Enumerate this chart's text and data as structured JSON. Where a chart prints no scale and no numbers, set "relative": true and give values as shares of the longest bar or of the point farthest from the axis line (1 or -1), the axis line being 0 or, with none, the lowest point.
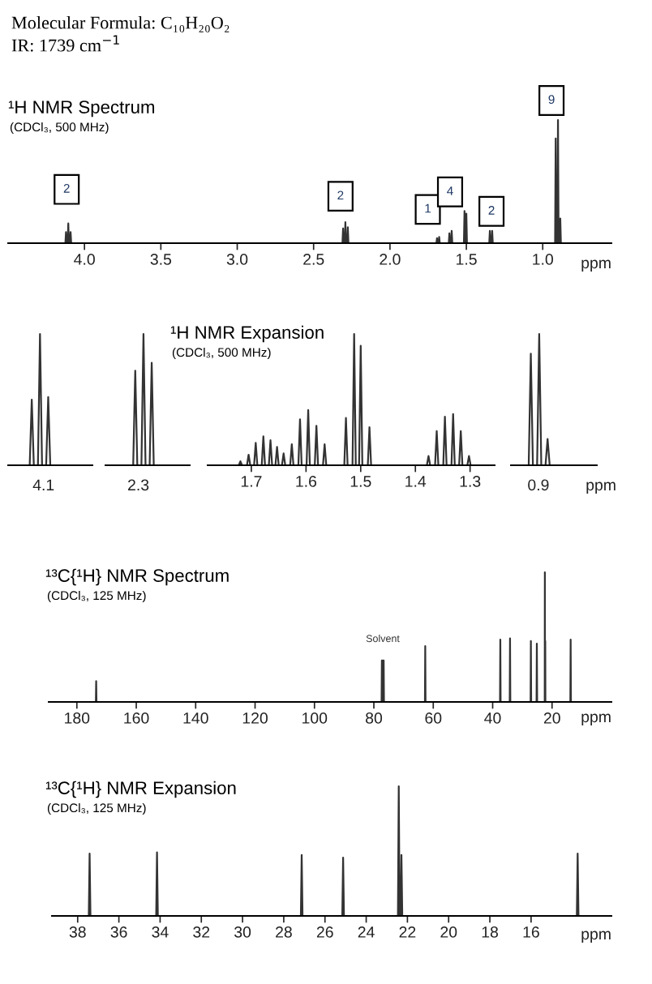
{
  "chart_data": [
    {
      "type": "line",
      "relative": true,
      "title": "¹H NMR Spectrum",
      "subtitle": "(CDCl₃, 500 MHz)",
      "xlabel": "ppm",
      "xlim": [
        4.5,
        0.55
      ],
      "xticks": [
        {
          "value": 4.0,
          "label": "4.0"
        },
        3.5,
        {
          "value": 3.0,
          "label": "3.0"
        },
        2.5,
        {
          "value": 2.0,
          "label": "2.0"
        },
        1.5,
        {
          "value": 1.0,
          "label": "1.0"
        }
      ],
      "annotations": [
        "Molecular Formula: C₁₀H₂₀O₂",
        "IR: 1739 cm$^{−1}$",
        {
          "text": "2",
          "x": 4.106,
          "y": 0.16
        },
        {
          "text": "2",
          "x": 2.292,
          "y": 0.17
        },
        {
          "text": "1",
          "x": 1.678,
          "y": 0.05
        },
        {
          "text": "4",
          "x": 1.596,
          "y": 0.1
        },
        {
          "text": "2",
          "x": 1.346,
          "y": 0.1
        },
        {
          "text": "9",
          "x": 0.9,
          "y": 1
        }
      ],
      "series": [
        {
          "color": "#333333",
          "x": [
            4.5,
            4.125,
            4.121,
            4.117,
            4.11,
            4.106,
            4.102,
            4.095,
            4.091,
            4.087,
            2.311,
            2.307,
            2.303,
            2.296,
            2.292,
            2.288,
            2.28,
            2.276,
            2.272,
            1.696,
            1.692,
            1.688,
            1.682,
            1.678,
            1.674,
            1.615,
            1.611,
            1.607,
            1.6,
            1.596,
            1.592,
            1.516,
            1.512,
            1.508,
            1.504,
            1.5,
            1.496,
            1.35,
            1.346,
            1.342,
            1.335,
            1.331,
            1.327,
            0.919,
            0.915,
            0.911,
            0.904,
            0.9,
            0.896,
            0.889,
            0.885,
            0.881,
            0.55
          ],
          "values": [
            0,
            0,
            0.09,
            0,
            0,
            0.16,
            0,
            0,
            0.09,
            0,
            0,
            0.12,
            0,
            0,
            0.17,
            0,
            0,
            0.13,
            0,
            0,
            0.04,
            0,
            0,
            0.05,
            0,
            0,
            0.08,
            0,
            0,
            0.1,
            0,
            0,
            0.26,
            0,
            0,
            0.24,
            0,
            0,
            0.1,
            0,
            0,
            0.1,
            0,
            0,
            0.85,
            0,
            0,
            1,
            0,
            0,
            0.2,
            0,
            0
          ]
        }
      ]
    },
    {
      "type": "line",
      "relative": true,
      "annotations": [
        "4.1"
      ],
      "categories": [
        null,
        null,
        null,
        null,
        null,
        null,
        null,
        null,
        null,
        null,
        null,
        null,
        null,
        null,
        null,
        null,
        null,
        null,
        null,
        null,
        null,
        null,
        null,
        null,
        null,
        null,
        null,
        null,
        null,
        null,
        null,
        null,
        null,
        null,
        null,
        null,
        null,
        null,
        null,
        null,
        null
      ],
      "series": [
        {
          "color": "#333333",
          "values": [
            0,
            0,
            0,
            0,
            0,
            0,
            0,
            0,
            0,
            0,
            0,
            0.5,
            0,
            0,
            0,
            1,
            0,
            0,
            0,
            0.52,
            0,
            0,
            0,
            0,
            0,
            0,
            0,
            0,
            0,
            0,
            0,
            0,
            0,
            0,
            0,
            0,
            0,
            0,
            0,
            0,
            0
          ]
        }
      ]
    },
    {
      "type": "line",
      "relative": true,
      "annotations": [
        "2.3"
      ],
      "categories": [
        null,
        null,
        null,
        null,
        null,
        null,
        null,
        null,
        null,
        null,
        null,
        null,
        null,
        null,
        null,
        null,
        null,
        null,
        null,
        null,
        null,
        null,
        null,
        null,
        null,
        null,
        null,
        null,
        null,
        null,
        null,
        null,
        null,
        null,
        null,
        null,
        null,
        null,
        null,
        null,
        null
      ],
      "series": [
        {
          "color": "#333333",
          "values": [
            0,
            0,
            0,
            0,
            0,
            0,
            0,
            0,
            0,
            0,
            0,
            0,
            0,
            0,
            0.72,
            0,
            0,
            0,
            1,
            0,
            0,
            0,
            0.78,
            0,
            0,
            0,
            0,
            0,
            0,
            0,
            0,
            0,
            0,
            0,
            0,
            0,
            0,
            0,
            0,
            0,
            0
          ]
        }
      ]
    },
    {
      "type": "line",
      "relative": true,
      "title": "¹H NMR Expansion",
      "subtitle": "(CDCl₃, 500 MHz)",
      "xlim": [
        1.78,
        1.255
      ],
      "xticks": [
        1.7,
        1.6,
        1.5,
        1.4,
        1.3
      ],
      "series": [
        {
          "color": "#333333",
          "x": [
            1.78,
            1.723,
            1.72,
            1.717,
            1.708,
            1.705,
            1.702,
            1.695,
            1.692,
            1.689,
            1.681,
            1.678,
            1.675,
            1.668,
            1.665,
            1.662,
            1.656,
            1.653,
            1.65,
            1.644,
            1.641,
            1.638,
            1.629,
            1.626,
            1.623,
            1.614,
            1.611,
            1.608,
            1.599,
            1.596,
            1.593,
            1.584,
            1.581,
            1.578,
            1.569,
            1.566,
            1.563,
            1.53,
            1.527,
            1.524,
            1.515,
            1.512,
            1.509,
            1.503,
            1.5,
            1.497,
            1.487,
            1.484,
            1.481,
            1.379,
            1.376,
            1.373,
            1.364,
            1.361,
            1.358,
            1.349,
            1.346,
            1.343,
            1.334,
            1.331,
            1.328,
            1.32,
            1.317,
            1.314,
            1.305,
            1.302,
            1.299,
            1.255
          ],
          "values": [
            0,
            0,
            0.03,
            0,
            0,
            0.08,
            0,
            0,
            0.17,
            0,
            0,
            0.22,
            0,
            0,
            0.19,
            0,
            0,
            0.14,
            0,
            0,
            0.09,
            0,
            0,
            0.16,
            0,
            0,
            0.35,
            0,
            0,
            0.42,
            0,
            0,
            0.3,
            0,
            0,
            0.16,
            0,
            0,
            0.36,
            0,
            0,
            1,
            0,
            0,
            0.91,
            0,
            0,
            0.29,
            0,
            0,
            0.07,
            0,
            0,
            0.26,
            0,
            0,
            0.37,
            0,
            0,
            0.39,
            0,
            0,
            0.26,
            0,
            0,
            0.07,
            0,
            0
          ]
        }
      ]
    },
    {
      "type": "line",
      "relative": true,
      "xlabel": "ppm",
      "annotations": [
        "0.9"
      ],
      "categories": [
        null,
        null,
        null,
        null,
        null,
        null,
        null,
        null,
        null,
        null,
        null,
        null,
        null,
        null,
        null,
        null,
        null,
        null,
        null,
        null,
        null,
        null,
        null,
        null,
        null,
        null,
        null,
        null,
        null,
        null,
        null,
        null,
        null,
        null,
        null,
        null,
        null,
        null,
        null,
        null,
        null
      ],
      "series": [
        {
          "color": "#333333",
          "values": [
            0,
            0,
            0,
            0,
            0,
            0,
            0,
            0,
            0,
            0.85,
            0,
            0,
            0,
            1,
            0,
            0,
            0,
            0.2,
            0,
            0,
            0,
            0,
            0,
            0,
            0,
            0,
            0,
            0,
            0,
            0,
            0,
            0,
            0,
            0,
            0,
            0,
            0,
            0,
            0,
            0,
            0
          ]
        }
      ]
    },
    {
      "type": "line",
      "relative": true,
      "title": "¹³C{¹H} NMR Spectrum",
      "subtitle": "(CDCl₃, 125 MHz)",
      "xlabel": "ppm",
      "xlim": [
        189.5,
        0
      ],
      "xticks": [
        180,
        160,
        140,
        120,
        100,
        80,
        60,
        40,
        20
      ],
      "annotations": [
        {
          "text": "Solvent",
          "x": 77.0,
          "y": 0.32
        }
      ],
      "series": [
        {
          "color": "#333333",
          "x": [
            189.5,
            173.6,
            173.5,
            173.4,
            77.4,
            77.3,
            77.2,
            77.1,
            77.0,
            76.9,
            76.8,
            76.7,
            76.6,
            62.8,
            62.7,
            62.6,
            37.52,
            37.42,
            37.32,
            34.25,
            34.15,
            34.05,
            27.23,
            27.13,
            27.03,
            25.22,
            25.12,
            25.02,
            22.47,
            22.42,
            22.37,
            22.34,
            22.29,
            22.24,
            13.84,
            13.74,
            13.64,
            0
          ],
          "values": [
            0,
            0,
            0.16,
            0,
            0,
            0.32,
            0,
            0,
            0.32,
            0,
            0,
            0.32,
            0,
            0,
            0.43,
            0,
            0,
            0.48,
            0,
            0,
            0.49,
            0,
            0,
            0.47,
            0,
            0,
            0.45,
            0,
            0,
            1,
            0,
            0,
            0.47,
            0,
            0,
            0.48,
            0,
            0
          ]
        }
      ]
    },
    {
      "type": "line",
      "relative": true,
      "title": "¹³C{¹H} NMR Expansion",
      "subtitle": "(CDCl₃, 125 MHz)",
      "xlabel": "ppm",
      "xlim": [
        39.25,
        12.1
      ],
      "xticks": [
        38,
        36,
        34,
        32,
        30,
        28,
        26,
        24,
        22,
        20,
        18,
        16
      ],
      "series": [
        {
          "color": "#333333",
          "x": [
            39.25,
            37.46,
            37.42,
            37.38,
            34.19,
            34.15,
            34.11,
            27.17,
            27.13,
            27.09,
            25.16,
            25.12,
            25.08,
            22.46,
            22.42,
            22.38,
            22.33,
            22.29,
            22.25,
            13.78,
            13.74,
            13.7,
            12.1
          ],
          "values": [
            0,
            0,
            0.48,
            0,
            0,
            0.49,
            0,
            0,
            0.47,
            0,
            0,
            0.45,
            0,
            0,
            1,
            0,
            0,
            0.47,
            0,
            0,
            0.48,
            0,
            0
          ]
        }
      ]
    }
  ]
}
